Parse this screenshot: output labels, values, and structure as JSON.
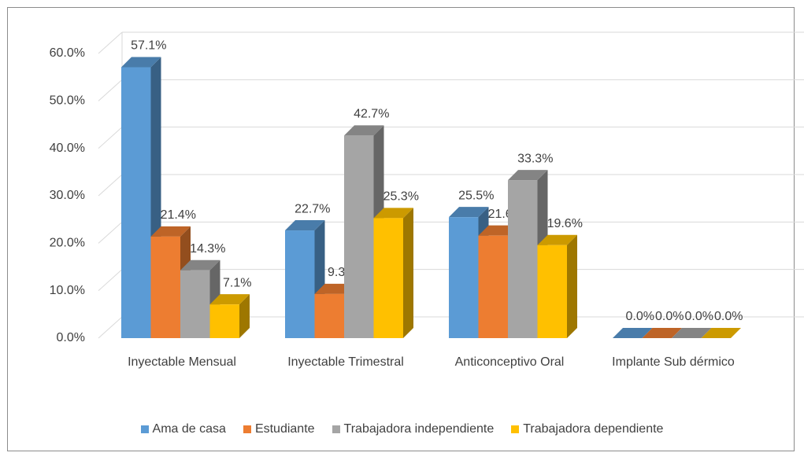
{
  "chart_data": {
    "type": "bar3d",
    "categories": [
      "Inyectable Mensual",
      "Inyectable Trimestral",
      "Anticonceptivo Oral",
      "Implante Sub dérmico"
    ],
    "series": [
      {
        "name": "Ama de casa",
        "color": "#5b9bd5",
        "values": [
          57.1,
          22.7,
          25.5,
          0.0
        ],
        "value_labels": [
          "57.1%",
          "22.7%",
          "25.5%",
          "0.0%"
        ]
      },
      {
        "name": "Estudiante",
        "color": "#ed7d31",
        "values": [
          21.4,
          9.3,
          21.6,
          0.0
        ],
        "value_labels": [
          "21.4%",
          "9.3%",
          "21.6%",
          "0.0%"
        ]
      },
      {
        "name": "Trabajadora independiente",
        "color": "#a5a5a5",
        "values": [
          14.3,
          42.7,
          33.3,
          0.0
        ],
        "value_labels": [
          "14.3%",
          "42.7%",
          "33.3%",
          "0.0%"
        ]
      },
      {
        "name": "Trabajadora dependiente",
        "color": "#ffc000",
        "values": [
          7.1,
          25.3,
          19.6,
          0.0
        ],
        "value_labels": [
          "7.1%",
          "25.3%",
          "19.6%",
          "0.0%"
        ]
      }
    ],
    "ylim": [
      0,
      60
    ],
    "yticks": [
      {
        "value": 0,
        "label": "0.0%"
      },
      {
        "value": 10,
        "label": "10.0%"
      },
      {
        "value": 20,
        "label": "20.0%"
      },
      {
        "value": 30,
        "label": "30.0%"
      },
      {
        "value": 40,
        "label": "40.0%"
      },
      {
        "value": 50,
        "label": "50.0%"
      },
      {
        "value": 60,
        "label": "60.0%"
      }
    ],
    "grid": true,
    "legend": "bottom"
  }
}
